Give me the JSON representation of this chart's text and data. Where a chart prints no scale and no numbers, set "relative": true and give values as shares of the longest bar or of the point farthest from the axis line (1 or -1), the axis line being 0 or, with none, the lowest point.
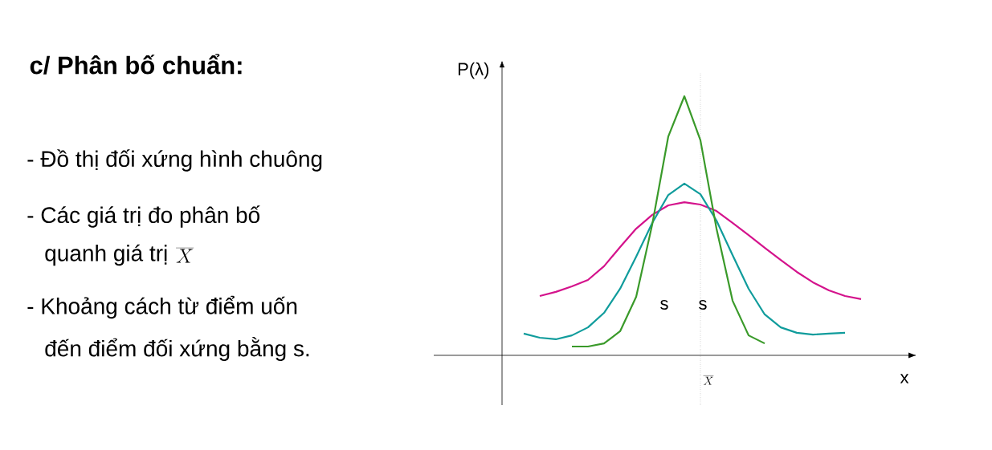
{
  "chart_data": {
    "type": "line",
    "relative": true,
    "title": "c/ Phân bố chuẩn:",
    "xlabel": "x",
    "ylabel": "P(λ)",
    "marker": "none",
    "line_style": "solid",
    "categories": [
      null,
      null,
      null,
      null,
      null,
      null,
      null,
      null,
      null,
      null,
      null,
      null,
      null,
      null,
      null,
      null,
      null,
      null,
      null,
      null,
      null,
      null,
      null
    ],
    "series": [
      {
        "color": "#d4138c",
        "values": [
          null,
          0.229,
          0.245,
          0.266,
          0.291,
          0.344,
          0.418,
          0.489,
          0.542,
          0.579,
          0.591,
          0.582,
          0.557,
          0.511,
          0.464,
          0.415,
          0.368,
          0.322,
          0.282,
          0.251,
          0.229,
          0.217,
          null
        ]
      },
      {
        "color": "#109c9c",
        "values": [
          0.084,
          0.068,
          0.062,
          0.077,
          0.108,
          0.164,
          0.257,
          0.381,
          0.511,
          0.619,
          0.663,
          0.622,
          0.52,
          0.387,
          0.257,
          0.158,
          0.108,
          0.087,
          0.08,
          0.084,
          0.087,
          null,
          null
        ]
      },
      {
        "color": "#3a9a2a",
        "values": [
          null,
          null,
          null,
          0.034,
          0.034,
          0.046,
          0.093,
          0.226,
          0.505,
          0.845,
          1,
          0.83,
          0.489,
          0.211,
          0.077,
          0.046,
          null,
          null,
          null,
          null,
          null,
          null,
          null
        ]
      }
    ],
    "annotations": [
      "- Đồ thị đối xứng hình chuông",
      "- Các giá trị đo phân bố",
      "quanh giá trị",
      "\\overline{X}",
      "- Khoảng cách từ điểm uốn",
      "đến điểm đối xứng bằng s.",
      "s",
      "s",
      "\\overline{X}"
    ]
  }
}
